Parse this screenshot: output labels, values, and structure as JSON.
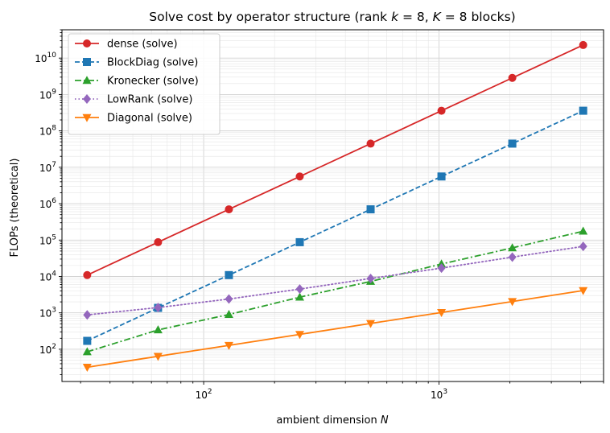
{
  "chart_data": {
    "type": "line",
    "title": "Solve cost by operator structure (rank k = 8, K = 8 blocks)",
    "xlabel": "ambient dimension N",
    "ylabel": "FLOPs (theoretical)",
    "xscale": "log",
    "yscale": "log",
    "xlim": [
      25,
      5000
    ],
    "ylim": [
      13,
      60000000000.0
    ],
    "grid": true,
    "legend_position": "top-left",
    "x": [
      32,
      64,
      128,
      256,
      512,
      1024,
      2048,
      4096
    ],
    "x_tick_labels": [
      {
        "value": 100,
        "base": "10",
        "exp": "2"
      },
      {
        "value": 1000,
        "base": "10",
        "exp": "3"
      }
    ],
    "y_tick_labels": [
      {
        "value": 100,
        "base": "10",
        "exp": "2"
      },
      {
        "value": 1000,
        "base": "10",
        "exp": "3"
      },
      {
        "value": 10000,
        "base": "10",
        "exp": "4"
      },
      {
        "value": 100000,
        "base": "10",
        "exp": "5"
      },
      {
        "value": 1000000,
        "base": "10",
        "exp": "6"
      },
      {
        "value": 10000000,
        "base": "10",
        "exp": "7"
      },
      {
        "value": 100000000,
        "base": "10",
        "exp": "8"
      },
      {
        "value": 1000000000,
        "base": "10",
        "exp": "9"
      },
      {
        "value": 10000000000,
        "base": "10",
        "exp": "10"
      }
    ],
    "series": [
      {
        "name": "dense (solve)",
        "color": "#d62728",
        "dash": "solid",
        "marker": "circle",
        "values": [
          10900,
          87400,
          699000,
          5590000,
          44700000,
          358000000,
          2860000000,
          22900000000
        ]
      },
      {
        "name": "BlockDiag (solve)",
        "color": "#1f77b4",
        "dash": "dashed",
        "marker": "square",
        "values": [
          170,
          1370,
          10900,
          87400,
          699000,
          5590000,
          44700000,
          358000000
        ]
      },
      {
        "name": "Kronecker (solve)",
        "color": "#2ca02c",
        "dash": "dashdot",
        "marker": "triangle-up",
        "values": [
          85,
          340,
          900,
          2700,
          7300,
          22000,
          61000,
          175000
        ]
      },
      {
        "name": "LowRank (solve)",
        "color": "#9467bd",
        "dash": "dotted",
        "marker": "diamond",
        "values": [
          880,
          1400,
          2400,
          4500,
          8800,
          17000,
          34000,
          67000
        ]
      },
      {
        "name": "Diagonal (solve)",
        "color": "#ff7f0e",
        "dash": "solid",
        "marker": "triangle-down",
        "values": [
          32,
          64,
          128,
          256,
          512,
          1024,
          2048,
          4096
        ]
      }
    ]
  }
}
